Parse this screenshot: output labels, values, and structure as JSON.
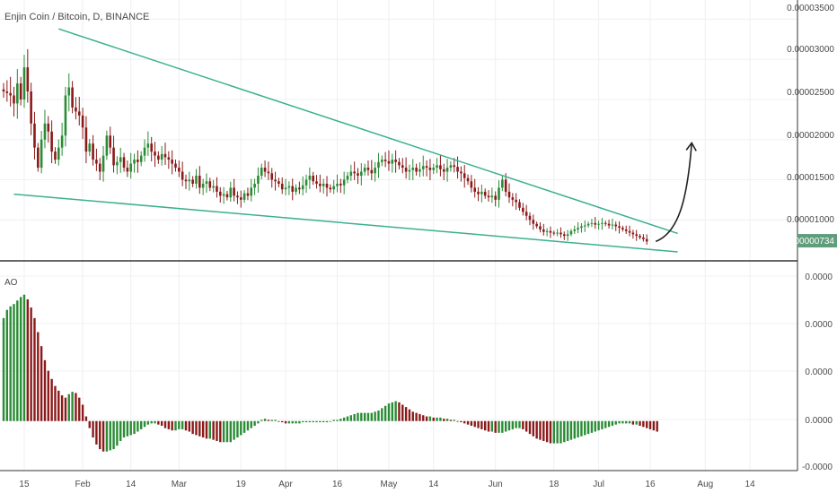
{
  "header": {
    "title": "Enjin Coin / Bitcoin, D, BINANCE"
  },
  "colors": {
    "up": "#2a8c35",
    "down": "#8b1a1a",
    "trendline": "#3bb08f",
    "annotation": "#222222",
    "price_tag_bg": "#5f9e7a",
    "grid": "#eef0f3",
    "axis": "#333333",
    "text": "#4a4a4a"
  },
  "price_axis": {
    "labels": [
      "0.00003500",
      "0.00003000",
      "0.00002500",
      "0.00002000",
      "0.00001500",
      "0.00001000"
    ]
  },
  "indicator_axis": {
    "labels": [
      "0.0000",
      "0.0000",
      "0.0000",
      "0.0000",
      "-0.0000"
    ]
  },
  "time_axis": {
    "labels": [
      "15",
      "Feb",
      "14",
      "Mar",
      "19",
      "Apr",
      "16",
      "May",
      "14",
      "Jun",
      "18",
      "Jul",
      "16",
      "Aug",
      "14"
    ]
  },
  "last_price": "0.00000734",
  "indicator": {
    "label": "AO"
  },
  "chart_data": [
    {
      "type": "candlestick",
      "title": "Enjin Coin / Bitcoin, D, BINANCE",
      "ylim": [
        5e-06,
        3.65e-05
      ],
      "y_ticks": [
        3.5e-05,
        3e-05,
        2.5e-05,
        2e-05,
        1.5e-05,
        1e-05
      ],
      "last_price": 7.34e-06,
      "time_ticks": [
        {
          "label": "15",
          "index": 6
        },
        {
          "label": "Feb",
          "index": 23
        },
        {
          "label": "14",
          "index": 37
        },
        {
          "label": "Mar",
          "index": 51
        },
        {
          "label": "19",
          "index": 69
        },
        {
          "label": "Apr",
          "index": 82
        },
        {
          "label": "16",
          "index": 97
        },
        {
          "label": "May",
          "index": 112
        },
        {
          "label": "14",
          "index": 125
        },
        {
          "label": "Jun",
          "index": 143
        },
        {
          "label": "18",
          "index": 160
        },
        {
          "label": "Jul",
          "index": 173
        },
        {
          "label": "16",
          "index": 188
        },
        {
          "label": "Aug",
          "index": 204
        },
        {
          "label": "14",
          "index": 217
        }
      ],
      "close": [
        2.6e-05,
        2.58e-05,
        2.55e-05,
        2.45e-05,
        2.7e-05,
        2.5e-05,
        2.9e-05,
        2.6e-05,
        2.2e-05,
        1.9e-05,
        1.65e-05,
        2e-05,
        2.2e-05,
        2.1e-05,
        1.85e-05,
        1.75e-05,
        1.9e-05,
        2.05e-05,
        2.55e-05,
        2.65e-05,
        2.4e-05,
        2.35e-05,
        2.3e-05,
        2.15e-05,
        1.85e-05,
        1.95e-05,
        1.75e-05,
        1.7e-05,
        1.6e-05,
        1.8e-05,
        2.05e-05,
        1.9e-05,
        1.68e-05,
        1.72e-05,
        1.78e-05,
        1.65e-05,
        1.6e-05,
        1.7e-05,
        1.75e-05,
        1.72e-05,
        1.8e-05,
        1.9e-05,
        1.95e-05,
        1.85e-05,
        1.8e-05,
        1.75e-05,
        1.82e-05,
        1.78e-05,
        1.75e-05,
        1.7e-05,
        1.65e-05,
        1.6e-05,
        1.5e-05,
        1.48e-05,
        1.5e-05,
        1.45e-05,
        1.55e-05,
        1.4e-05,
        1.45e-05,
        1.48e-05,
        1.4e-05,
        1.42e-05,
        1.35e-05,
        1.3e-05,
        1.32e-05,
        1.28e-05,
        1.4e-05,
        1.3e-05,
        1.28e-05,
        1.25e-05,
        1.33e-05,
        1.3e-05,
        1.4e-05,
        1.45e-05,
        1.55e-05,
        1.65e-05,
        1.6e-05,
        1.58e-05,
        1.5e-05,
        1.48e-05,
        1.45e-05,
        1.38e-05,
        1.4e-05,
        1.42e-05,
        1.35e-05,
        1.4e-05,
        1.38e-05,
        1.43e-05,
        1.5e-05,
        1.55e-05,
        1.48e-05,
        1.45e-05,
        1.42e-05,
        1.45e-05,
        1.4e-05,
        1.38e-05,
        1.42e-05,
        1.45e-05,
        1.43e-05,
        1.5e-05,
        1.55e-05,
        1.6e-05,
        1.58e-05,
        1.55e-05,
        1.6e-05,
        1.65e-05,
        1.62e-05,
        1.58e-05,
        1.65e-05,
        1.72e-05,
        1.75e-05,
        1.73e-05,
        1.7e-05,
        1.75e-05,
        1.72e-05,
        1.68e-05,
        1.65e-05,
        1.6e-05,
        1.62e-05,
        1.65e-05,
        1.6e-05,
        1.63e-05,
        1.67e-05,
        1.65e-05,
        1.62e-05,
        1.65e-05,
        1.68e-05,
        1.63e-05,
        1.6e-05,
        1.65e-05,
        1.68e-05,
        1.66e-05,
        1.6e-05,
        1.58e-05,
        1.52e-05,
        1.48e-05,
        1.4e-05,
        1.35e-05,
        1.32e-05,
        1.35e-05,
        1.3e-05,
        1.28e-05,
        1.3e-05,
        1.25e-05,
        1.4e-05,
        1.5e-05,
        1.35e-05,
        1.28e-05,
        1.25e-05,
        1.22e-05,
        1.15e-05,
        1.1e-05,
        1.05e-05,
        1e-05,
        9.5e-06,
        9.2e-06,
        8.8e-06,
        8.5e-06,
        8.6e-06,
        8.4e-06,
        8.3e-06,
        8.4e-06,
        8.2e-06,
        8e-06,
        8.2e-06,
        8.6e-06,
        8.8e-06,
        9e-06,
        9.2e-06,
        9.3e-06,
        9.5e-06,
        9.6e-06,
        9.4e-06,
        9.5e-06,
        9.6e-06,
        9.5e-06,
        9.3e-06,
        9.4e-06,
        9.2e-06,
        9e-06,
        8.8e-06,
        8.6e-06,
        8.4e-06,
        8.2e-06,
        8e-06,
        7.8e-06,
        7.6e-06,
        7.3e-06
      ],
      "ao": [
        8.8e-06,
        9.5e-06,
        9.8e-06,
        1e-05,
        1.03e-05,
        1.06e-05,
        1.08e-05,
        1.04e-05,
        9.7e-06,
        8.8e-06,
        7.6e-06,
        6.4e-06,
        5.2e-06,
        4.3e-06,
        3.6e-06,
        3e-06,
        2.6e-06,
        2.2e-06,
        2e-06,
        2.3e-06,
        2.5e-06,
        2.4e-06,
        2e-06,
        1.4e-06,
        4e-07,
        -6e-07,
        -1.4e-06,
        -2e-06,
        -2.4e-06,
        -2.6e-06,
        -2.6e-06,
        -2.5e-06,
        -2.4e-06,
        -2.1e-06,
        -1.7e-06,
        -1.4e-06,
        -1.3e-06,
        -1.2e-06,
        -1.1e-06,
        -9e-07,
        -7e-07,
        -5e-07,
        -3e-07,
        -2e-07,
        -2e-07,
        -3e-07,
        -4e-07,
        -6e-07,
        -7e-07,
        -8e-07,
        -8e-07,
        -7e-07,
        -7e-07,
        -8e-07,
        -9e-07,
        -1.1e-06,
        -1.2e-06,
        -1.3e-06,
        -1.4e-06,
        -1.5e-06,
        -1.5e-06,
        -1.6e-06,
        -1.7e-06,
        -1.8e-06,
        -1.8e-06,
        -1.8e-06,
        -1.8e-06,
        -1.6e-06,
        -1.4e-06,
        -1.2e-06,
        -1e-06,
        -8e-07,
        -6e-07,
        -4e-07,
        -2e-07,
        1e-07,
        2e-07,
        1e-07,
        1e-07,
        1e-07,
        0.0,
        -1e-07,
        -2e-07,
        -2e-07,
        -2e-07,
        -2e-07,
        -2e-07,
        -1e-07,
        -1e-07,
        -1e-07,
        -1e-07,
        -1e-07,
        -1e-07,
        -1e-07,
        -1e-07,
        0.0,
        1e-07,
        1e-07,
        2e-07,
        3e-07,
        4e-07,
        5e-07,
        6e-07,
        7e-07,
        7e-07,
        7e-07,
        7e-07,
        7e-07,
        8e-07,
        9e-07,
        1.1e-06,
        1.3e-06,
        1.5e-06,
        1.6e-06,
        1.7e-06,
        1.6e-06,
        1.4e-06,
        1.2e-06,
        1e-06,
        8e-07,
        7e-07,
        6e-07,
        5e-07,
        4e-07,
        4e-07,
        3e-07,
        3e-07,
        3e-07,
        2e-07,
        2e-07,
        1e-07,
        1e-07,
        0.0,
        -1e-07,
        -2e-07,
        -3e-07,
        -4e-07,
        -5e-07,
        -6e-07,
        -7e-07,
        -8e-07,
        -9e-07,
        -9e-07,
        -1e-06,
        -1e-06,
        -1e-06,
        -9e-07,
        -8e-07,
        -7e-07,
        -6e-07,
        -6e-07,
        -7e-07,
        -9e-07,
        -1.1e-06,
        -1.3e-06,
        -1.5e-06,
        -1.6e-06,
        -1.7e-06,
        -1.8e-06,
        -1.9e-06,
        -1.9e-06,
        -1.9e-06,
        -1.9e-06,
        -1.8e-06,
        -1.7e-06,
        -1.6e-06,
        -1.5e-06,
        -1.4e-06,
        -1.3e-06,
        -1.2e-06,
        -1.1e-06,
        -1e-06,
        -9e-07,
        -8e-07,
        -7e-07,
        -6e-07,
        -5e-07,
        -4e-07,
        -3e-07,
        -2e-07,
        -2e-07,
        -2e-07,
        -2e-07,
        -3e-07,
        -3e-07,
        -4e-07,
        -5e-07,
        -6e-07,
        -7e-07,
        -8e-07,
        -9e-07
      ],
      "ao_ylim": [
        -4e-06,
        1.3e-05
      ],
      "trendlines": [
        {
          "name": "upper",
          "from": {
            "index": 16,
            "value": 3.38e-05
          },
          "to": {
            "index": 196,
            "value": 8.3e-06
          }
        },
        {
          "name": "lower",
          "from": {
            "index": 3,
            "value": 1.32e-05
          },
          "to": {
            "index": 196,
            "value": 6e-06
          }
        }
      ],
      "annotation": {
        "type": "arrow",
        "direction": "up"
      },
      "grid": true
    }
  ]
}
